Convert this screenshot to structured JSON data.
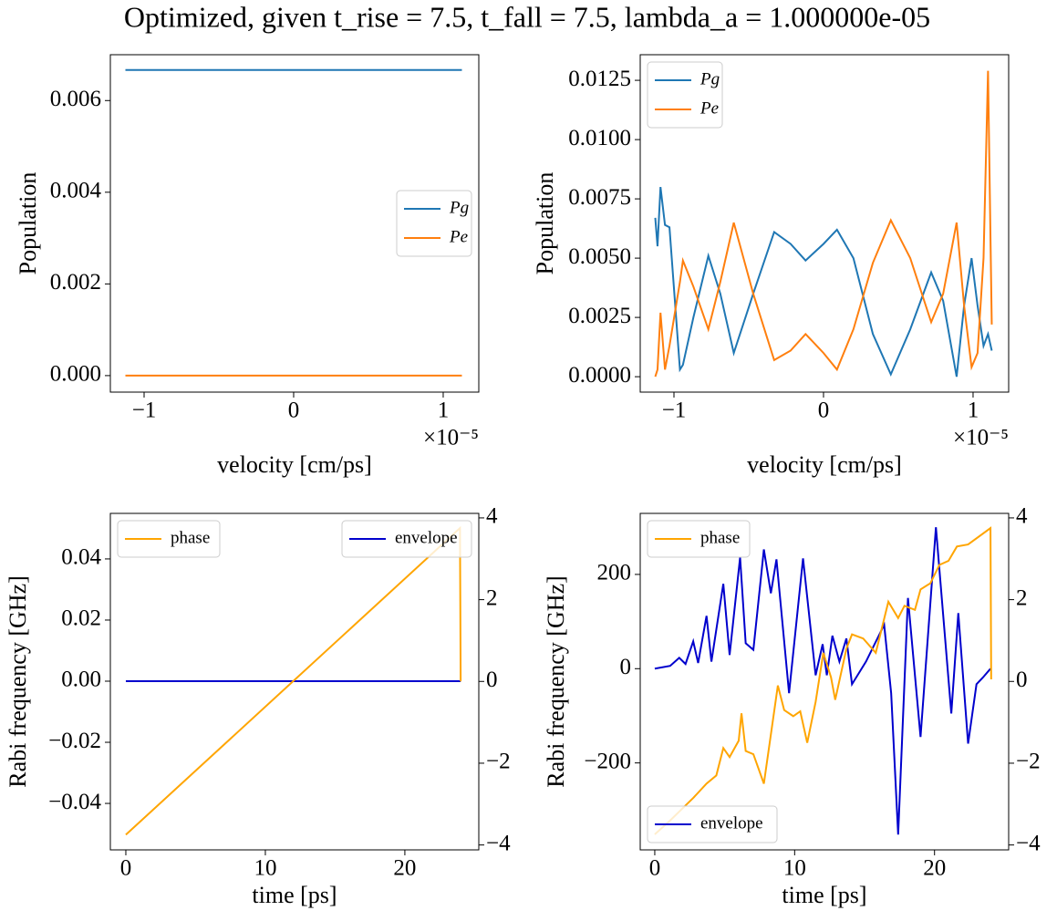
{
  "title": "Optimized, given t_rise = 7.5, t_fall = 7.5, lambda_a = 1.000000e-05",
  "chart_data": [
    {
      "type": "line",
      "xlabel": "velocity [cm/ps]",
      "ylabel": "Population",
      "x_offset_label": "×10⁻⁵",
      "xlim": [
        -1.2256e-05,
        1.238e-05
      ],
      "ylim": [
        -0.00036,
        0.007
      ],
      "xticks": [
        {
          "value": -1e-05,
          "label": "−1"
        },
        {
          "value": 0,
          "label": "0"
        },
        {
          "value": 1e-05,
          "label": "1"
        }
      ],
      "yticks": [
        {
          "value": 0,
          "label": "0.000"
        },
        0.002,
        0.004,
        0.006
      ],
      "x": [
        -1.125e-05,
        1.125e-05
      ],
      "series": [
        {
          "name": "Pg",
          "color": "#1f77b4",
          "values": [
            0.006667,
            0.006667
          ]
        },
        {
          "name": "Pe",
          "color": "#ff7f0e",
          "values": [
            0,
            0
          ]
        }
      ],
      "legend_loc": "center right"
    },
    {
      "type": "line",
      "xlabel": "velocity [cm/ps]",
      "ylabel": "Population",
      "x_offset_label": "×10⁻⁵",
      "xlim": [
        -1.2256e-05,
        1.238e-05
      ],
      "ylim": [
        -0.00065,
        0.01358
      ],
      "xticks": [
        {
          "value": -1e-05,
          "label": "−1"
        },
        {
          "value": 0,
          "label": "0"
        },
        {
          "value": 1e-05,
          "label": "1"
        }
      ],
      "yticks": [
        {
          "value": 0,
          "label": "0.0000"
        },
        0.0025,
        {
          "value": 0.005,
          "label": "0.0050"
        },
        0.0075,
        {
          "value": 0.01,
          "label": "0.0100"
        },
        0.0125
      ],
      "x": [
        -1.125e-05,
        -1.11e-05,
        -1.09e-05,
        -1.06e-05,
        -1.03e-05,
        -9.6e-06,
        -9.4e-06,
        -8.7e-06,
        -7.7e-06,
        -6.9e-06,
        -6e-06,
        -4.7e-06,
        -3.3e-06,
        -2.2e-06,
        -1.2e-06,
        0,
        9e-07,
        2e-06,
        3.3e-06,
        4.5e-06,
        5.8e-06,
        7.2e-06,
        8e-06,
        8.9e-06,
        9.4e-06,
        9.9e-06,
        1.03e-05,
        1.07e-05,
        1.1e-05,
        1.125e-05
      ],
      "series": [
        {
          "name": "Pg",
          "color": "#1f77b4",
          "values": [
            0.0067,
            0.0055,
            0.008,
            0.0064,
            0.0063,
            0.0003,
            0.0005,
            0.0025,
            0.0051,
            0.0035,
            0.001,
            0.0035,
            0.0061,
            0.0056,
            0.0049,
            0.0056,
            0.0062,
            0.005,
            0.0018,
            0.0001,
            0.002,
            0.0044,
            0.0032,
            0.0,
            0.003,
            0.005,
            0.003,
            0.0013,
            0.0018,
            0.0011
          ]
        },
        {
          "name": "Pe",
          "color": "#ff7f0e",
          "values": [
            0.0,
            0.0003,
            0.0027,
            0.0003,
            0.0013,
            0.004,
            0.0049,
            0.0038,
            0.002,
            0.004,
            0.0065,
            0.0035,
            0.0007,
            0.0011,
            0.0018,
            0.001,
            0.0003,
            0.002,
            0.0048,
            0.0066,
            0.005,
            0.0023,
            0.0035,
            0.0065,
            0.003,
            0.0004,
            0.001,
            0.005,
            0.0129,
            0.0022
          ]
        }
      ],
      "legend_loc": "upper left"
    },
    {
      "type": "line",
      "xlabel": "time [ps]",
      "ylabel": "Rabi frequency [GHz]",
      "xlim": [
        -1.11,
        25.3
      ],
      "ylim": [
        -0.0552,
        0.0549
      ],
      "y2lim": [
        -4.12,
        4.11
      ],
      "xticks": [
        0,
        10,
        20
      ],
      "yticks": [
        {
          "value": -0.04,
          "label": "−0.04"
        },
        {
          "value": -0.02,
          "label": "−0.02"
        },
        {
          "value": 0,
          "label": "0.00"
        },
        0.02,
        0.04
      ],
      "y2ticks": [
        {
          "value": -4,
          "label": "−4"
        },
        {
          "value": -2,
          "label": "−2"
        },
        0,
        2,
        4
      ],
      "series": [
        {
          "name": "envelope",
          "color": "#0000cd",
          "x": [
            0,
            24
          ],
          "values": [
            0,
            0
          ]
        },
        {
          "name": "phase",
          "color": "#ffa500",
          "axis": "y2",
          "x": [
            0,
            23.95,
            24
          ],
          "values": [
            -3.75,
            3.75,
            0
          ]
        }
      ],
      "legend_loc": "upper right",
      "legend2_loc": "upper left"
    },
    {
      "type": "line",
      "xlabel": "time [ps]",
      "ylabel": "Rabi frequency [GHz]",
      "xlim": [
        -1.04,
        25.3
      ],
      "ylim": [
        -384.5,
        329.5
      ],
      "y2lim": [
        -4.12,
        4.11
      ],
      "xticks": [
        0,
        10,
        20
      ],
      "yticks": [
        {
          "value": -200,
          "label": "−200"
        },
        0,
        200
      ],
      "y2ticks": [
        {
          "value": -4,
          "label": "−4"
        },
        {
          "value": -2,
          "label": "−2"
        },
        0,
        2,
        4
      ],
      "series": [
        {
          "name": "envelope",
          "color": "#0000cd",
          "x": [
            0,
            1.1,
            1.75,
            2.2,
            2.75,
            3.1,
            3.7,
            4.05,
            4.9,
            5.35,
            6.1,
            6.5,
            7.05,
            7.8,
            8.3,
            8.7,
            9.6,
            10.6,
            11.5,
            12.0,
            12.3,
            12.7,
            13.2,
            13.7,
            14.1,
            15.1,
            16.4,
            16.9,
            17.4,
            18.1,
            19.0,
            20.1,
            21.2,
            21.7,
            22.4,
            23.0,
            23.45,
            24.0
          ],
          "values": [
            0,
            6,
            23,
            10,
            58,
            12,
            112,
            15,
            180,
            29,
            236,
            54,
            40,
            253,
            160,
            232,
            -52,
            234,
            -14,
            52,
            -14,
            70,
            15,
            64,
            -33,
            15,
            93,
            -52,
            -352,
            150,
            -145,
            300,
            -95,
            118,
            -159,
            -33,
            -19,
            0
          ]
        },
        {
          "name": "phase",
          "color": "#ffa500",
          "axis": "y2",
          "x": [
            0,
            1.1,
            2.75,
            3.7,
            4.4,
            4.9,
            5.35,
            6.0,
            6.2,
            6.5,
            7.05,
            7.8,
            8.8,
            9.25,
            9.9,
            10.4,
            10.9,
            11.5,
            12.05,
            12.6,
            12.9,
            13.7,
            14.1,
            14.9,
            15.8,
            16.7,
            17.4,
            17.85,
            18.6,
            19.0,
            19.7,
            20.35,
            21.0,
            21.6,
            22.4,
            24.0,
            24.05
          ],
          "values": [
            -3.74,
            -3.4,
            -2.85,
            -2.5,
            -2.3,
            -1.63,
            -1.85,
            -1.45,
            -0.78,
            -1.7,
            -1.78,
            -2.5,
            -0.1,
            -0.7,
            -0.85,
            -0.73,
            -1.5,
            -0.5,
            0.7,
            0.1,
            -0.45,
            0.8,
            1.15,
            1.05,
            0.7,
            1.95,
            1.55,
            1.85,
            1.75,
            2.25,
            2.4,
            2.85,
            2.95,
            3.3,
            3.35,
            3.75,
            0.05
          ]
        }
      ],
      "legend_loc": "lower left",
      "legend2_loc": "upper left"
    }
  ]
}
